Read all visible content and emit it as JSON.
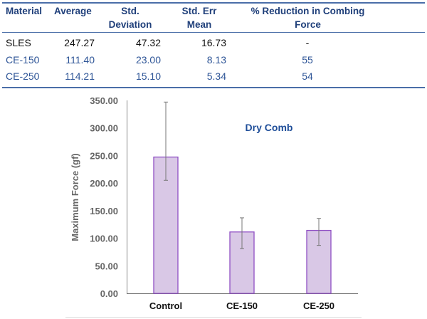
{
  "table": {
    "headers": [
      "Material",
      "Average",
      "Std. Deviation",
      "Std. Err Mean",
      "% Reduction in Combing Force"
    ],
    "header_lines": [
      [
        "Material"
      ],
      [
        "Average"
      ],
      [
        "Std.",
        "Deviation"
      ],
      [
        "Std. Err",
        "Mean"
      ],
      [
        "% Reduction in Combing",
        "Force"
      ]
    ],
    "rows": [
      [
        "SLES",
        "247.27",
        "47.32",
        "16.73",
        "-"
      ],
      [
        "CE-150",
        "111.40",
        "23.00",
        "8.13",
        "55"
      ],
      [
        "CE-250",
        "114.21",
        "15.10",
        "5.34",
        "54"
      ]
    ],
    "colors": {
      "header": "#1f3f7a",
      "first_row": "#111111",
      "other_rows": "#2e5597",
      "rule": "#4a6ea8"
    }
  },
  "chart_data": {
    "type": "bar",
    "title": "Dry Comb",
    "xlabel": "",
    "ylabel": "Maximum Force (gf)",
    "categories": [
      "Control",
      "CE-150",
      "CE-250"
    ],
    "values": [
      247.27,
      111.4,
      114.21
    ],
    "error_high": [
      347,
      137,
      136
    ],
    "error_low": [
      205,
      81,
      87
    ],
    "ylim": [
      0,
      350
    ],
    "yticks": [
      "0.00",
      "50.00",
      "100.00",
      "150.00",
      "200.00",
      "250.00",
      "300.00",
      "350.00"
    ],
    "grid": false,
    "bar_fill": "#d9c8e6",
    "bar_stroke": "#8f4fc4",
    "title_color": "#1f4e99"
  }
}
